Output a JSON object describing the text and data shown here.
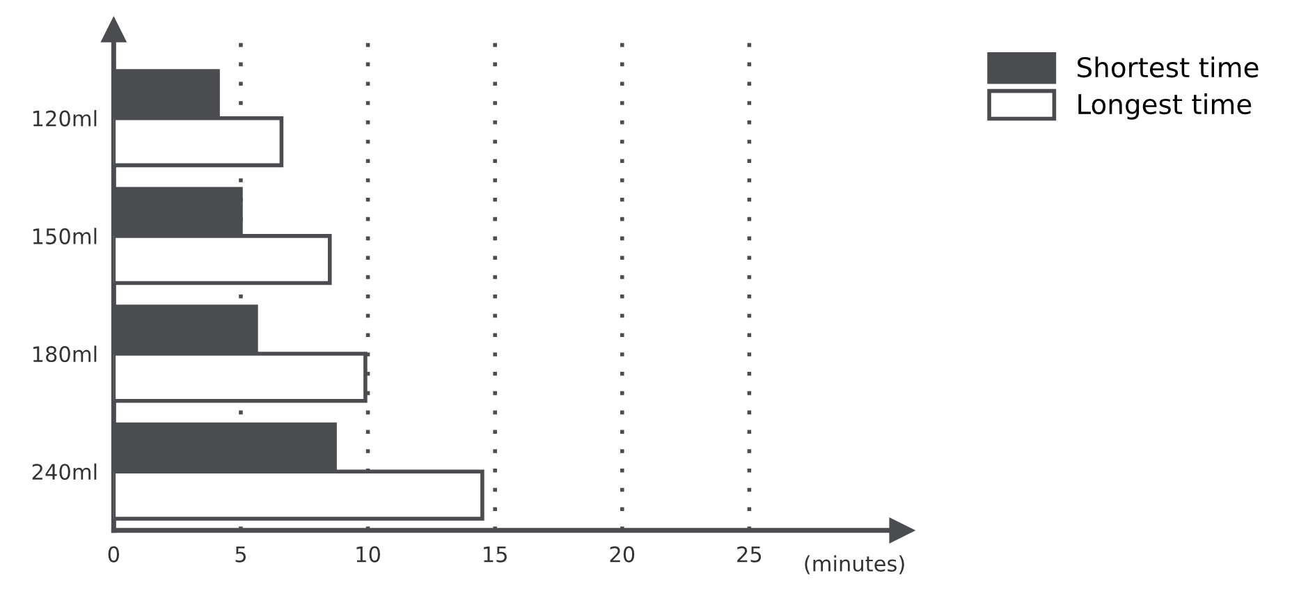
{
  "chart_data": {
    "type": "bar",
    "orientation": "horizontal",
    "xlabel": "(minutes)",
    "categories": [
      "120ml",
      "150ml",
      "180ml",
      "240ml"
    ],
    "series": [
      {
        "name": "Shortest time",
        "color": "#4a4c4f",
        "values": [
          4.1,
          5.0,
          5.6,
          8.7
        ]
      },
      {
        "name": "Longest time",
        "color": "#ffffff",
        "values": [
          6.6,
          8.5,
          9.9,
          14.5
        ]
      }
    ],
    "xlim": [
      0,
      31
    ],
    "xticks": [
      0,
      5,
      10,
      15,
      20,
      25
    ],
    "grid": "x",
    "legend": "top right"
  }
}
